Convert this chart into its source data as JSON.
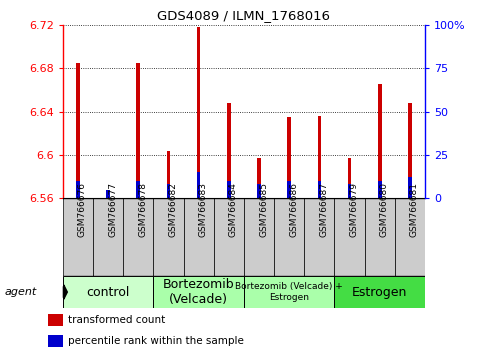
{
  "title": "GDS4089 / ILMN_1768016",
  "samples": [
    "GSM766676",
    "GSM766677",
    "GSM766678",
    "GSM766682",
    "GSM766683",
    "GSM766684",
    "GSM766685",
    "GSM766686",
    "GSM766687",
    "GSM766679",
    "GSM766680",
    "GSM766681"
  ],
  "transformed_counts": [
    6.685,
    6.567,
    6.685,
    6.604,
    6.718,
    6.648,
    6.597,
    6.635,
    6.636,
    6.597,
    6.665,
    6.648
  ],
  "percentile_ranks": [
    10,
    5,
    10,
    8,
    15,
    10,
    8,
    10,
    10,
    8,
    10,
    12
  ],
  "ylim_left": [
    6.56,
    6.72
  ],
  "ylim_right": [
    0,
    100
  ],
  "yticks_left": [
    6.56,
    6.6,
    6.64,
    6.68,
    6.72
  ],
  "yticks_right": [
    0,
    25,
    50,
    75,
    100
  ],
  "ytick_labels_right": [
    "0",
    "25",
    "50",
    "75",
    "100%"
  ],
  "bar_color": "#cc0000",
  "percentile_color": "#0000cc",
  "groups": [
    {
      "label": "control",
      "start": 0,
      "end": 3,
      "color": "#ccffcc"
    },
    {
      "label": "Bortezomib\n(Velcade)",
      "start": 3,
      "end": 6,
      "color": "#aaffaa"
    },
    {
      "label": "Bortezomib (Velcade) +\nEstrogen",
      "start": 6,
      "end": 9,
      "color": "#aaffaa"
    },
    {
      "label": "Estrogen",
      "start": 9,
      "end": 12,
      "color": "#44dd44"
    }
  ],
  "agent_label": "agent",
  "legend_items": [
    {
      "color": "#cc0000",
      "label": "transformed count"
    },
    {
      "color": "#0000cc",
      "label": "percentile rank within the sample"
    }
  ],
  "bar_width": 0.12,
  "base_value": 6.56,
  "xtick_bg": "#cccccc"
}
